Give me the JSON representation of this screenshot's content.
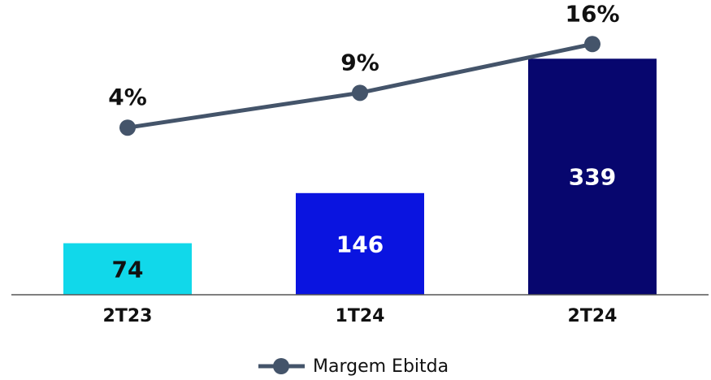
{
  "chart_data": {
    "type": "bar",
    "categories": [
      "2T23",
      "1T24",
      "2T24"
    ],
    "values": [
      74,
      146,
      339
    ],
    "colors": [
      "#11d8ea",
      "#0a14e0",
      "#07066e"
    ],
    "label_colors": [
      "#111111",
      "#ffffff",
      "#ffffff"
    ],
    "ylim": [
      0,
      400
    ],
    "y2lim": [
      -20,
      20
    ],
    "series": [
      {
        "name": "Margem Ebitda",
        "type": "line",
        "color": "#44546a",
        "axis": "y2",
        "values": [
          4,
          9,
          16
        ],
        "value_labels": [
          "4%",
          "9%",
          "16%"
        ]
      }
    ],
    "legend": "bottom"
  }
}
